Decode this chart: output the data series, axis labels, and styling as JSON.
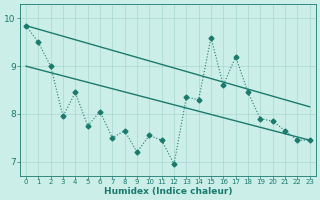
{
  "xlabel": "Humidex (Indice chaleur)",
  "background_color": "#cceee8",
  "line_color": "#1a7a6e",
  "xlim": [
    -0.5,
    23.5
  ],
  "ylim": [
    6.7,
    10.3
  ],
  "yticks": [
    7,
    8,
    9,
    10
  ],
  "xticks": [
    0,
    1,
    2,
    3,
    4,
    5,
    6,
    7,
    8,
    9,
    10,
    11,
    12,
    13,
    14,
    15,
    16,
    17,
    18,
    19,
    20,
    21,
    22,
    23
  ],
  "series1_x": [
    0,
    1,
    2,
    3,
    4,
    5,
    6,
    7,
    8,
    9,
    10,
    11,
    12,
    13,
    14,
    15,
    16,
    17,
    18,
    19,
    20,
    21,
    22,
    23
  ],
  "series1_y": [
    9.85,
    9.5,
    9.0,
    7.95,
    8.45,
    7.75,
    8.05,
    7.5,
    7.65,
    7.2,
    7.55,
    7.45,
    6.95,
    8.35,
    8.3,
    9.6,
    8.6,
    9.2,
    8.45,
    7.9,
    7.85,
    7.65,
    7.45,
    7.45
  ],
  "trend1_x": [
    0,
    23
  ],
  "trend1_y": [
    9.85,
    8.15
  ],
  "trend2_x": [
    0,
    23
  ],
  "trend2_y": [
    9.0,
    7.45
  ],
  "grid_color": "#a8d8d0",
  "grid_linewidth": 0.5,
  "marker": "D",
  "markersize": 2.5
}
